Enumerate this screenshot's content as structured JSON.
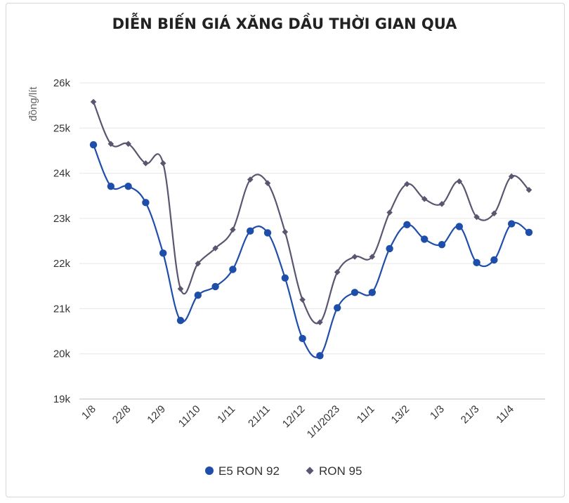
{
  "chart_data": {
    "type": "line",
    "title": "DIỄN BIẾN GIÁ XĂNG DẦU THỜI GIAN QUA",
    "ylabel": "đồng/lít",
    "xlabel": "",
    "ylim": [
      19000,
      26000
    ],
    "yticks": [
      19000,
      20000,
      21000,
      22000,
      23000,
      24000,
      25000,
      26000
    ],
    "ytick_labels": [
      "19k",
      "20k",
      "21k",
      "22k",
      "23k",
      "24k",
      "25k",
      "26k"
    ],
    "x_labels": [
      {
        "index": 0,
        "label": "1/8"
      },
      {
        "index": 2,
        "label": "22/8"
      },
      {
        "index": 4,
        "label": "12/9"
      },
      {
        "index": 6,
        "label": "11/10"
      },
      {
        "index": 8,
        "label": "1/11"
      },
      {
        "index": 10,
        "label": "21/11"
      },
      {
        "index": 12,
        "label": "12/12"
      },
      {
        "index": 14,
        "label": "1/1/2023"
      },
      {
        "index": 16,
        "label": "11/1"
      },
      {
        "index": 18,
        "label": "13/2"
      },
      {
        "index": 20,
        "label": "1/3"
      },
      {
        "index": 22,
        "label": "21/3"
      },
      {
        "index": 24,
        "label": "11/4"
      }
    ],
    "grid": true,
    "legend_position": "bottom",
    "series": [
      {
        "name": "E5 RON 92",
        "color": "#1f4eaa",
        "marker": "circle",
        "values": [
          24630,
          23710,
          23710,
          23350,
          22230,
          20740,
          21300,
          21490,
          21870,
          22720,
          22680,
          21680,
          20340,
          19960,
          21020,
          21360,
          21360,
          22330,
          22860,
          22540,
          22420,
          22820,
          22020,
          22080,
          22880,
          22690
        ]
      },
      {
        "name": "RON 95",
        "color": "#5b5670",
        "marker": "diamond",
        "values": [
          25580,
          24650,
          24650,
          24220,
          24220,
          21440,
          22000,
          22340,
          22750,
          23860,
          23780,
          22700,
          21200,
          20700,
          21810,
          22150,
          22150,
          23130,
          23760,
          23430,
          23320,
          23820,
          23030,
          23110,
          23930,
          23630
        ]
      }
    ]
  }
}
